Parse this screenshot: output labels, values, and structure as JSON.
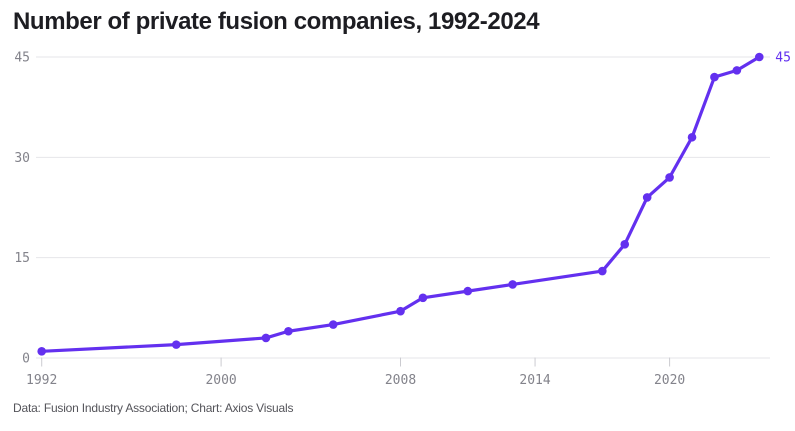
{
  "header": {
    "title": "Number of private fusion companies, 1992-2024"
  },
  "footer": {
    "source": "Data: Fusion Industry Association; Chart: Axios Visuals"
  },
  "chart_data": {
    "type": "line",
    "title": "Number of private fusion companies, 1992-2024",
    "series": [
      {
        "name": "Private fusion companies",
        "x": [
          1992,
          1998,
          2002,
          2003,
          2005,
          2008,
          2009,
          2011,
          2013,
          2017,
          2018,
          2019,
          2020,
          2021,
          2022,
          2023,
          2024
        ],
        "y": [
          1,
          2,
          3,
          4,
          5,
          7,
          9,
          10,
          11,
          13,
          17,
          24,
          27,
          33,
          42,
          43,
          45
        ]
      }
    ],
    "xlim": [
      1992,
      2024
    ],
    "ylim": [
      0,
      45
    ],
    "xticks": [
      1992,
      2000,
      2008,
      2014,
      2020
    ],
    "yticks": [
      0,
      15,
      30,
      45
    ],
    "grid": true,
    "legend": false,
    "end_label": "45",
    "colors": {
      "line": "#6330ef",
      "marker": "#6330ef",
      "end_label": "#6330ef",
      "grid": "#e6e6ea",
      "tick": "#cbcbd0",
      "axis_label": "#83838b",
      "title": "#1d1d22",
      "source": "#54545a",
      "background": "#ffffff"
    }
  }
}
